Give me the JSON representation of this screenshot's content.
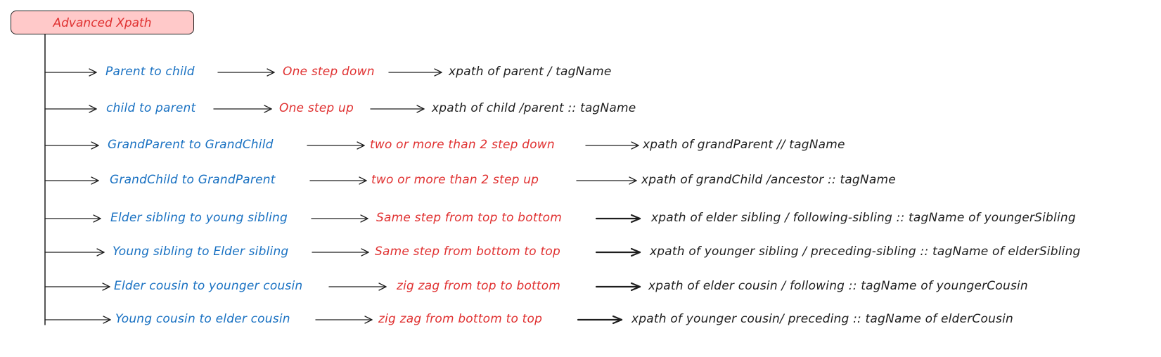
{
  "title": "Advanced Xpath",
  "colors": {
    "title_fill": "#ffc9c9",
    "title_text": "#e03131",
    "relation_source": "#1971c2",
    "step_description": "#e03131",
    "xpath_expression": "#1e1e1e",
    "stroke": "#1e1e1e"
  },
  "rows": [
    {
      "relation": "Parent to child",
      "steps": "One step down",
      "xpath": "xpath of parent / tagName"
    },
    {
      "relation": "child to parent",
      "steps": "One step up",
      "xpath": "xpath of child /parent :: tagName"
    },
    {
      "relation": "GrandParent to GrandChild",
      "steps": "two or more than 2 step down",
      "xpath": "xpath of grandParent // tagName"
    },
    {
      "relation": "GrandChild to GrandParent",
      "steps": "two or more than 2 step up",
      "xpath": "xpath of grandChild /ancestor :: tagName"
    },
    {
      "relation": "Elder sibling to young sibling",
      "steps": "Same step from top to bottom",
      "xpath": "xpath of elder sibling / following-sibling :: tagName of youngerSibling"
    },
    {
      "relation": "Young sibling to Elder sibling",
      "steps": "Same step from bottom to top",
      "xpath": "xpath of younger sibling / preceding-sibling :: tagName of elderSibling"
    },
    {
      "relation": "Elder cousin to younger cousin",
      "steps": "zig zag from top to bottom",
      "xpath": "xpath of elder cousin / following :: tagName of youngerCousin"
    },
    {
      "relation": "Young cousin to elder cousin",
      "steps": "zig zag from bottom to top",
      "xpath": "xpath of younger cousin/ preceding :: tagName of elderCousin"
    }
  ]
}
